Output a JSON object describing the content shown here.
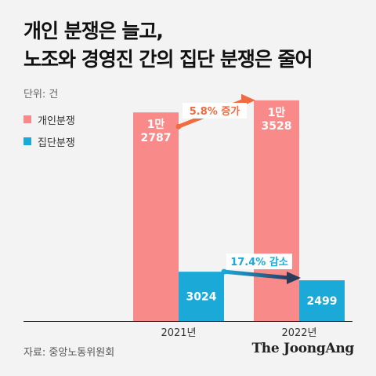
{
  "title_lines": [
    "개인 분쟁은 늘고,",
    "노조와 경영진 간의 집단 분쟁은 줄어"
  ],
  "unit_label": "단위: 건",
  "source": "자료: 중앙노동위원회",
  "brand": "The JoongAng",
  "colors": {
    "individual": "#f98a8a",
    "collective": "#1ba9d8",
    "arrow_up": "#f26a3f",
    "arrow_down_start": "#1ba9d8",
    "arrow_down_end": "#2a3b5b"
  },
  "chart_data": {
    "type": "bar",
    "categories": [
      "2021년",
      "2022년"
    ],
    "series": [
      {
        "name": "개인분쟁",
        "values": [
          12787,
          13528
        ],
        "labels": [
          "1만\n2787",
          "1만\n3528"
        ]
      },
      {
        "name": "집단분쟁",
        "values": [
          3024,
          2499
        ],
        "labels": [
          "3024",
          "2499"
        ]
      }
    ],
    "annotations": [
      "5.8% 증가",
      "17.4% 감소"
    ],
    "ylim": [
      0,
      14000
    ],
    "grid": false,
    "legend_position": "top-left"
  }
}
